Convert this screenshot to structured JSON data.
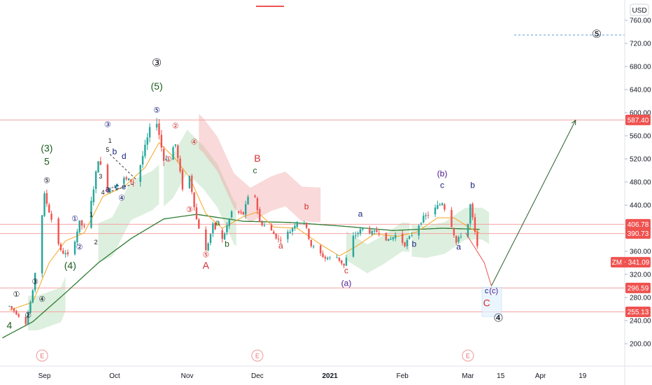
{
  "colors": {
    "up": "#26a69a",
    "down": "#ef5350",
    "ema_fast": "#f5a623",
    "ma_slow": "#2e7d32",
    "cloud_bull": "#a5d6a7",
    "cloud_bear": "#ef9a9a",
    "level_line": "#f4a3a3",
    "wave_red": "#d32f2f",
    "wave_green": "#1b5e20",
    "wave_blue": "#1a237e",
    "wave_purple": "#4a148c",
    "projection": "#2e5e2e"
  },
  "chart_data": {
    "type": "candlestick",
    "symbol_tag": "ZM",
    "currency_label": "USD",
    "last_price": 341.09,
    "y_axis": {
      "scale": "linear",
      "ticks": [
        760,
        720,
        680,
        640,
        600,
        560,
        520,
        480,
        440,
        400,
        360,
        320,
        280,
        240,
        200
      ],
      "tick_labels": [
        "760.00",
        "720.00",
        "680.00",
        "640.00",
        "600.00",
        "560.00",
        "520.00",
        "480.00",
        "440.00",
        "400.00",
        "360.00",
        "320.00",
        "280.00",
        "240.00",
        "200.00"
      ]
    },
    "x_axis": {
      "tick_labels": [
        "Sep",
        "Oct",
        "Nov",
        "Dec",
        "2021",
        "Feb",
        "Mar",
        "15",
        "Apr",
        "19"
      ]
    },
    "horizontal_levels": [
      {
        "price": 587.4,
        "label": "587.40"
      },
      {
        "price": 406.78,
        "label": "406.78"
      },
      {
        "price": 390.73,
        "label": "390.73"
      },
      {
        "price": 296.59,
        "label": "296.59"
      },
      {
        "price": 255.13,
        "label": "255.13"
      }
    ],
    "price_tag": {
      "label": "ZM ‧ 341.09",
      "price": 341.09
    },
    "ohlc_anchors": [
      {
        "date": "2020-08-17",
        "price": 265
      },
      {
        "date": "2020-08-24",
        "price": 236
      },
      {
        "date": "2020-08-27",
        "price": 290
      },
      {
        "date": "2020-09-01",
        "price": 457
      },
      {
        "date": "2020-09-08",
        "price": 360
      },
      {
        "date": "2020-09-12",
        "price": 350
      },
      {
        "date": "2020-09-16",
        "price": 410
      },
      {
        "date": "2020-09-19",
        "price": 395
      },
      {
        "date": "2020-09-24",
        "price": 520
      },
      {
        "date": "2020-09-28",
        "price": 468
      },
      {
        "date": "2020-10-05",
        "price": 485
      },
      {
        "date": "2020-10-10",
        "price": 480
      },
      {
        "date": "2020-10-16",
        "price": 570
      },
      {
        "date": "2020-10-19",
        "price": 585
      },
      {
        "date": "2020-10-22",
        "price": 518
      },
      {
        "date": "2020-10-27",
        "price": 545
      },
      {
        "date": "2020-10-30",
        "price": 470
      },
      {
        "date": "2020-11-02",
        "price": 490
      },
      {
        "date": "2020-11-05",
        "price": 415
      },
      {
        "date": "2020-11-09",
        "price": 360
      },
      {
        "date": "2020-11-12",
        "price": 405
      },
      {
        "date": "2020-11-16",
        "price": 380
      },
      {
        "date": "2020-11-20",
        "price": 428
      },
      {
        "date": "2020-11-25",
        "price": 425
      },
      {
        "date": "2020-11-29",
        "price": 478
      },
      {
        "date": "2020-12-02",
        "price": 410
      },
      {
        "date": "2020-12-06",
        "price": 400
      },
      {
        "date": "2020-12-10",
        "price": 380
      },
      {
        "date": "2020-12-15",
        "price": 395
      },
      {
        "date": "2020-12-20",
        "price": 425
      },
      {
        "date": "2020-12-24",
        "price": 370
      },
      {
        "date": "2020-12-30",
        "price": 348
      },
      {
        "date": "2021-01-04",
        "price": 350
      },
      {
        "date": "2021-01-07",
        "price": 335
      },
      {
        "date": "2021-01-11",
        "price": 385
      },
      {
        "date": "2021-01-15",
        "price": 400
      },
      {
        "date": "2021-01-19",
        "price": 392
      },
      {
        "date": "2021-01-22",
        "price": 395
      },
      {
        "date": "2021-01-26",
        "price": 378
      },
      {
        "date": "2021-01-29",
        "price": 388
      },
      {
        "date": "2021-02-02",
        "price": 372
      },
      {
        "date": "2021-02-06",
        "price": 395
      },
      {
        "date": "2021-02-10",
        "price": 418
      },
      {
        "date": "2021-02-14",
        "price": 430
      },
      {
        "date": "2021-02-18",
        "price": 445
      },
      {
        "date": "2021-02-22",
        "price": 405
      },
      {
        "date": "2021-02-24",
        "price": 375
      },
      {
        "date": "2021-02-26",
        "price": 388
      },
      {
        "date": "2021-02-28",
        "price": 375
      },
      {
        "date": "2021-03-02",
        "price": 440
      },
      {
        "date": "2021-03-04",
        "price": 392
      },
      {
        "date": "2021-03-06",
        "price": 341
      }
    ],
    "ema_fast_anchors": [
      {
        "date": "2020-08-17",
        "price": 258
      },
      {
        "date": "2020-08-27",
        "price": 272
      },
      {
        "date": "2020-09-03",
        "price": 340
      },
      {
        "date": "2020-09-10",
        "price": 378
      },
      {
        "date": "2020-09-18",
        "price": 392
      },
      {
        "date": "2020-09-26",
        "price": 455
      },
      {
        "date": "2020-10-05",
        "price": 472
      },
      {
        "date": "2020-10-14",
        "price": 505
      },
      {
        "date": "2020-10-20",
        "price": 548
      },
      {
        "date": "2020-10-27",
        "price": 520
      },
      {
        "date": "2020-11-02",
        "price": 488
      },
      {
        "date": "2020-11-09",
        "price": 425
      },
      {
        "date": "2020-11-16",
        "price": 400
      },
      {
        "date": "2020-11-25",
        "price": 420
      },
      {
        "date": "2020-12-01",
        "price": 428
      },
      {
        "date": "2020-12-08",
        "price": 402
      },
      {
        "date": "2020-12-18",
        "price": 400
      },
      {
        "date": "2020-12-28",
        "price": 372
      },
      {
        "date": "2021-01-05",
        "price": 352
      },
      {
        "date": "2021-01-12",
        "price": 368
      },
      {
        "date": "2021-01-20",
        "price": 390
      },
      {
        "date": "2021-01-30",
        "price": 386
      },
      {
        "date": "2021-02-07",
        "price": 393
      },
      {
        "date": "2021-02-16",
        "price": 418
      },
      {
        "date": "2021-02-23",
        "price": 418
      },
      {
        "date": "2021-03-02",
        "price": 400
      },
      {
        "date": "2021-03-06",
        "price": 392
      }
    ],
    "ma_slow_anchors": [
      {
        "date": "2020-08-14",
        "price": 210
      },
      {
        "date": "2020-08-27",
        "price": 238
      },
      {
        "date": "2020-09-10",
        "price": 288
      },
      {
        "date": "2020-09-24",
        "price": 340
      },
      {
        "date": "2020-10-08",
        "price": 382
      },
      {
        "date": "2020-10-22",
        "price": 416
      },
      {
        "date": "2020-11-05",
        "price": 424
      },
      {
        "date": "2020-11-25",
        "price": 412
      },
      {
        "date": "2020-12-15",
        "price": 410
      },
      {
        "date": "2021-01-05",
        "price": 404
      },
      {
        "date": "2021-01-28",
        "price": 396
      },
      {
        "date": "2021-02-18",
        "price": 400
      },
      {
        "date": "2021-03-06",
        "price": 398
      }
    ],
    "projection_path": [
      {
        "date": "2021-02-28",
        "price": 392
      },
      {
        "date": "2021-03-08",
        "price": 340
      },
      {
        "date": "2021-03-11",
        "price": 300
      },
      {
        "date": "2021-04-16",
        "price": 587
      }
    ],
    "wave_labels": [
      {
        "text": "4",
        "date": "2020-08-17",
        "price": 226,
        "color": "green",
        "size": 14
      },
      {
        "text": "①",
        "date": "2020-08-20",
        "price": 281,
        "color": "dark",
        "size": 11
      },
      {
        "text": "②",
        "date": "2020-08-25",
        "price": 245,
        "color": "dark",
        "size": 11
      },
      {
        "text": "③",
        "date": "2020-08-28",
        "price": 303,
        "color": "dark",
        "size": 11
      },
      {
        "text": "④",
        "date": "2020-08-31",
        "price": 273,
        "color": "dark",
        "size": 11
      },
      {
        "text": "(3)",
        "date": "2020-09-02",
        "price": 533,
        "color": "green",
        "size": 14
      },
      {
        "text": "5",
        "date": "2020-09-02",
        "price": 510,
        "color": "green",
        "size": 14
      },
      {
        "text": "⑤",
        "date": "2020-09-02",
        "price": 478,
        "color": "dark",
        "size": 11
      },
      {
        "text": "(4)",
        "date": "2020-09-12",
        "price": 330,
        "color": "green",
        "size": 14
      },
      {
        "text": "①",
        "date": "2020-09-14",
        "price": 412,
        "color": "blue",
        "size": 11
      },
      {
        "text": "②",
        "date": "2020-09-16",
        "price": 363,
        "color": "blue",
        "size": 11
      },
      {
        "text": "1",
        "date": "2020-09-21",
        "price": 420,
        "color": "dark",
        "size": 9
      },
      {
        "text": "2",
        "date": "2020-09-23",
        "price": 372,
        "color": "dark",
        "size": 9
      },
      {
        "text": "③",
        "date": "2020-09-28",
        "price": 575,
        "color": "blue",
        "size": 11
      },
      {
        "text": "5",
        "date": "2020-09-28",
        "price": 532,
        "color": "dark",
        "size": 9
      },
      {
        "text": "b",
        "date": "2020-10-01",
        "price": 528,
        "color": "blue",
        "size": 12
      },
      {
        "text": "d",
        "date": "2020-10-05",
        "price": 520,
        "color": "blue",
        "size": 12
      },
      {
        "text": "1",
        "date": "2020-09-29",
        "price": 548,
        "color": "dark",
        "size": 9
      },
      {
        "text": "3",
        "date": "2020-09-25",
        "price": 486,
        "color": "dark",
        "size": 9
      },
      {
        "text": "4",
        "date": "2020-09-26",
        "price": 458,
        "color": "dark",
        "size": 9
      },
      {
        "text": "a",
        "date": "2020-09-28",
        "price": 463,
        "color": "blue",
        "size": 12
      },
      {
        "text": "c",
        "date": "2020-10-02",
        "price": 467,
        "color": "blue",
        "size": 12
      },
      {
        "text": "e",
        "date": "2020-10-05",
        "price": 467,
        "color": "blue",
        "size": 12
      },
      {
        "text": "④",
        "date": "2020-10-04",
        "price": 448,
        "color": "blue",
        "size": 11
      },
      {
        "text": "③",
        "date": "2020-10-19",
        "price": 680,
        "color": "dark",
        "size": 16
      },
      {
        "text": "(5)",
        "date": "2020-10-19",
        "price": 640,
        "color": "green",
        "size": 14
      },
      {
        "text": "⑤",
        "date": "2020-10-19",
        "price": 600,
        "color": "blue",
        "size": 11
      },
      {
        "text": "②",
        "date": "2020-10-27",
        "price": 573,
        "color": "red",
        "size": 11
      },
      {
        "text": "①",
        "date": "2020-10-24",
        "price": 515,
        "color": "red",
        "size": 11
      },
      {
        "text": "④",
        "date": "2020-11-04",
        "price": 545,
        "color": "red",
        "size": 11
      },
      {
        "text": "③",
        "date": "2020-11-02",
        "price": 428,
        "color": "red",
        "size": 11
      },
      {
        "text": "⑤",
        "date": "2020-11-09",
        "price": 350,
        "color": "red",
        "size": 11
      },
      {
        "text": "A",
        "date": "2020-11-09",
        "price": 330,
        "color": "red",
        "size": 14
      },
      {
        "text": "a",
        "date": "2020-11-14",
        "price": 405,
        "color": "green",
        "size": 12
      },
      {
        "text": "b",
        "date": "2020-11-18",
        "price": 368,
        "color": "green",
        "size": 12
      },
      {
        "text": "B",
        "date": "2020-12-01",
        "price": 515,
        "color": "red",
        "size": 14
      },
      {
        "text": "c",
        "date": "2020-11-30",
        "price": 495,
        "color": "green",
        "size": 12
      },
      {
        "text": "a",
        "date": "2020-12-11",
        "price": 365,
        "color": "red",
        "size": 12
      },
      {
        "text": "b",
        "date": "2020-12-22",
        "price": 433,
        "color": "red",
        "size": 12
      },
      {
        "text": "c",
        "date": "2021-01-08",
        "price": 322,
        "color": "red",
        "size": 12
      },
      {
        "text": "(a)",
        "date": "2021-01-08",
        "price": 300,
        "color": "purple",
        "size": 12
      },
      {
        "text": "a",
        "date": "2021-01-14",
        "price": 420,
        "color": "blue",
        "size": 12
      },
      {
        "text": "b",
        "date": "2021-02-06",
        "price": 368,
        "color": "blue",
        "size": 12
      },
      {
        "text": "(b)",
        "date": "2021-02-18",
        "price": 490,
        "color": "purple",
        "size": 12
      },
      {
        "text": "c",
        "date": "2021-02-18",
        "price": 470,
        "color": "blue",
        "size": 12
      },
      {
        "text": "a",
        "date": "2021-02-25",
        "price": 363,
        "color": "blue",
        "size": 12
      },
      {
        "text": "b",
        "date": "2021-03-03",
        "price": 470,
        "color": "blue",
        "size": 12
      },
      {
        "text": "c",
        "date": "2021-03-09",
        "price": 287,
        "color": "blue",
        "size": 11
      },
      {
        "text": "(c)",
        "date": "2021-03-12",
        "price": 287,
        "color": "purple",
        "size": 11
      },
      {
        "text": "C",
        "date": "2021-03-09",
        "price": 265,
        "color": "red",
        "size": 14
      },
      {
        "text": "④",
        "date": "2021-03-14",
        "price": 238,
        "color": "dark",
        "size": 16
      },
      {
        "text": "⑤",
        "date": "2021-04-25",
        "price": 730,
        "color": "dark",
        "size": 16
      }
    ],
    "earnings_markers": [
      {
        "text": "E",
        "date": "2020-08-31"
      },
      {
        "text": "E",
        "date": "2020-12-01"
      },
      {
        "text": "E",
        "date": "2021-03-01"
      }
    ]
  }
}
